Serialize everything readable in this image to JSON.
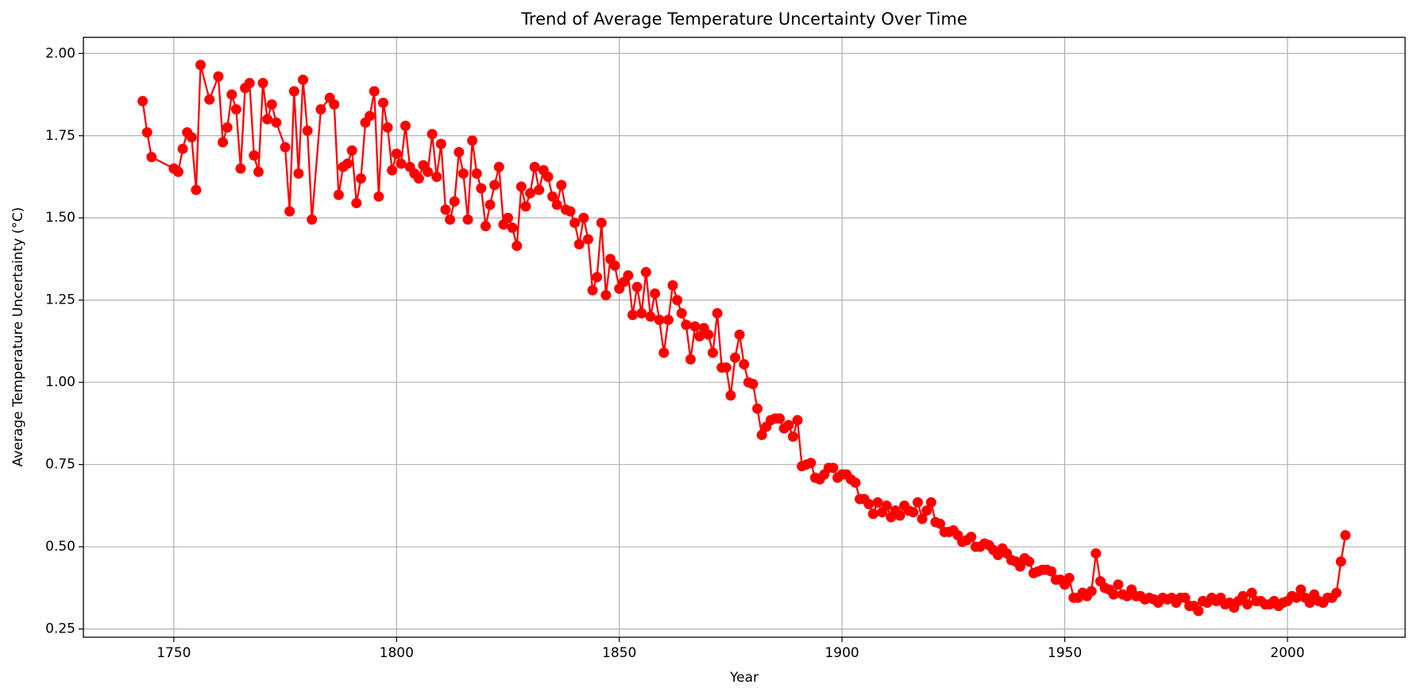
{
  "chart_data": {
    "type": "line",
    "title": "Trend of Average Temperature Uncertainty Over Time",
    "x_label": "Year",
    "y_label": "Average Temperature Uncertainty (°C)",
    "x": [
      1743,
      1744,
      1745,
      1750,
      1751,
      1752,
      1753,
      1754,
      1755,
      1756,
      1758,
      1760,
      1761,
      1762,
      1763,
      1764,
      1765,
      1766,
      1767,
      1768,
      1769,
      1770,
      1771,
      1772,
      1773,
      1775,
      1776,
      1777,
      1778,
      1779,
      1780,
      1781,
      1783,
      1785,
      1786,
      1787,
      1788,
      1789,
      1790,
      1791,
      1792,
      1793,
      1794,
      1795,
      1796,
      1797,
      1798,
      1799,
      1800,
      1801,
      1802,
      1803,
      1804,
      1805,
      1806,
      1807,
      1808,
      1809,
      1810,
      1811,
      1812,
      1813,
      1814,
      1815,
      1816,
      1817,
      1818,
      1819,
      1820,
      1821,
      1822,
      1823,
      1824,
      1825,
      1826,
      1827,
      1828,
      1829,
      1830,
      1831,
      1832,
      1833,
      1834,
      1835,
      1836,
      1837,
      1838,
      1839,
      1840,
      1841,
      1842,
      1843,
      1844,
      1845,
      1846,
      1847,
      1848,
      1849,
      1850,
      1851,
      1852,
      1853,
      1854,
      1855,
      1856,
      1857,
      1858,
      1859,
      1860,
      1861,
      1862,
      1863,
      1864,
      1865,
      1866,
      1867,
      1868,
      1869,
      1870,
      1871,
      1872,
      1873,
      1874,
      1875,
      1876,
      1877,
      1878,
      1879,
      1880,
      1881,
      1882,
      1883,
      1884,
      1885,
      1886,
      1887,
      1888,
      1889,
      1890,
      1891,
      1892,
      1893,
      1894,
      1895,
      1896,
      1897,
      1898,
      1899,
      1900,
      1901,
      1902,
      1903,
      1904,
      1905,
      1906,
      1907,
      1908,
      1909,
      1910,
      1911,
      1912,
      1913,
      1914,
      1915,
      1916,
      1917,
      1918,
      1919,
      1920,
      1921,
      1922,
      1923,
      1924,
      1925,
      1926,
      1927,
      1928,
      1929,
      1930,
      1931,
      1932,
      1933,
      1934,
      1935,
      1936,
      1937,
      1938,
      1939,
      1940,
      1941,
      1942,
      1943,
      1944,
      1945,
      1946,
      1947,
      1948,
      1949,
      1950,
      1951,
      1952,
      1953,
      1954,
      1955,
      1956,
      1957,
      1958,
      1959,
      1960,
      1961,
      1962,
      1963,
      1964,
      1965,
      1966,
      1967,
      1968,
      1969,
      1970,
      1971,
      1972,
      1973,
      1974,
      1975,
      1976,
      1977,
      1978,
      1979,
      1980,
      1981,
      1982,
      1983,
      1984,
      1985,
      1986,
      1987,
      1988,
      1989,
      1990,
      1991,
      1992,
      1993,
      1994,
      1995,
      1996,
      1997,
      1998,
      1999,
      2000,
      2001,
      2002,
      2003,
      2004,
      2005,
      2006,
      2007,
      2008,
      2009,
      2010,
      2011,
      2012,
      2013
    ],
    "series": [
      {
        "color": "#ff0000",
        "values": [
          1.855,
          1.76,
          1.685,
          1.65,
          1.64,
          1.71,
          1.76,
          1.745,
          1.585,
          1.965,
          1.86,
          1.93,
          1.73,
          1.775,
          1.875,
          1.83,
          1.65,
          1.895,
          1.91,
          1.69,
          1.64,
          1.91,
          1.8,
          1.845,
          1.79,
          1.715,
          1.52,
          1.885,
          1.635,
          1.92,
          1.765,
          1.495,
          1.83,
          1.865,
          1.845,
          1.57,
          1.655,
          1.665,
          1.705,
          1.545,
          1.62,
          1.79,
          1.81,
          1.885,
          1.565,
          1.85,
          1.775,
          1.645,
          1.695,
          1.665,
          1.78,
          1.655,
          1.635,
          1.62,
          1.66,
          1.64,
          1.755,
          1.625,
          1.725,
          1.525,
          1.495,
          1.55,
          1.7,
          1.635,
          1.495,
          1.735,
          1.635,
          1.59,
          1.475,
          1.54,
          1.6,
          1.655,
          1.48,
          1.5,
          1.47,
          1.415,
          1.595,
          1.535,
          1.575,
          1.655,
          1.585,
          1.645,
          1.625,
          1.565,
          1.54,
          1.6,
          1.525,
          1.52,
          1.485,
          1.42,
          1.5,
          1.435,
          1.28,
          1.32,
          1.485,
          1.265,
          1.375,
          1.355,
          1.285,
          1.305,
          1.325,
          1.205,
          1.29,
          1.21,
          1.335,
          1.2,
          1.27,
          1.19,
          1.09,
          1.19,
          1.295,
          1.25,
          1.21,
          1.175,
          1.07,
          1.17,
          1.14,
          1.165,
          1.145,
          1.09,
          1.21,
          1.045,
          1.045,
          0.96,
          1.075,
          1.145,
          1.055,
          1.0,
          0.995,
          0.92,
          0.84,
          0.865,
          0.885,
          0.89,
          0.89,
          0.86,
          0.87,
          0.835,
          0.885,
          0.745,
          0.75,
          0.755,
          0.71,
          0.705,
          0.72,
          0.74,
          0.74,
          0.71,
          0.72,
          0.72,
          0.705,
          0.695,
          0.645,
          0.645,
          0.63,
          0.6,
          0.635,
          0.605,
          0.625,
          0.59,
          0.61,
          0.595,
          0.625,
          0.61,
          0.605,
          0.635,
          0.585,
          0.61,
          0.635,
          0.575,
          0.57,
          0.545,
          0.545,
          0.55,
          0.535,
          0.515,
          0.52,
          0.53,
          0.5,
          0.5,
          0.51,
          0.505,
          0.49,
          0.475,
          0.495,
          0.48,
          0.46,
          0.455,
          0.44,
          0.465,
          0.455,
          0.42,
          0.425,
          0.43,
          0.43,
          0.425,
          0.4,
          0.4,
          0.385,
          0.405,
          0.345,
          0.345,
          0.36,
          0.35,
          0.365,
          0.48,
          0.395,
          0.375,
          0.37,
          0.355,
          0.385,
          0.355,
          0.35,
          0.37,
          0.35,
          0.35,
          0.34,
          0.345,
          0.34,
          0.33,
          0.345,
          0.34,
          0.345,
          0.33,
          0.345,
          0.345,
          0.32,
          0.32,
          0.305,
          0.335,
          0.33,
          0.345,
          0.335,
          0.345,
          0.325,
          0.33,
          0.315,
          0.335,
          0.35,
          0.325,
          0.36,
          0.335,
          0.335,
          0.325,
          0.325,
          0.335,
          0.32,
          0.33,
          0.335,
          0.35,
          0.345,
          0.37,
          0.345,
          0.33,
          0.355,
          0.335,
          0.33,
          0.345,
          0.345,
          0.36,
          0.455,
          0.535
        ]
      }
    ],
    "xlim": [
      1729.7,
      2026.4
    ],
    "ylim": [
      0.225,
      2.049
    ],
    "xticks": [
      1750,
      1800,
      1850,
      1900,
      1950,
      2000
    ],
    "yticks": [
      0.25,
      {
        "value": 0.5,
        "label": "0.50"
      },
      0.75,
      {
        "value": 1.0,
        "label": "1.00"
      },
      1.25,
      {
        "value": 1.5,
        "label": "1.50"
      },
      1.75,
      {
        "value": 2.0,
        "label": "2.00"
      }
    ],
    "grid": true,
    "marker": true
  }
}
